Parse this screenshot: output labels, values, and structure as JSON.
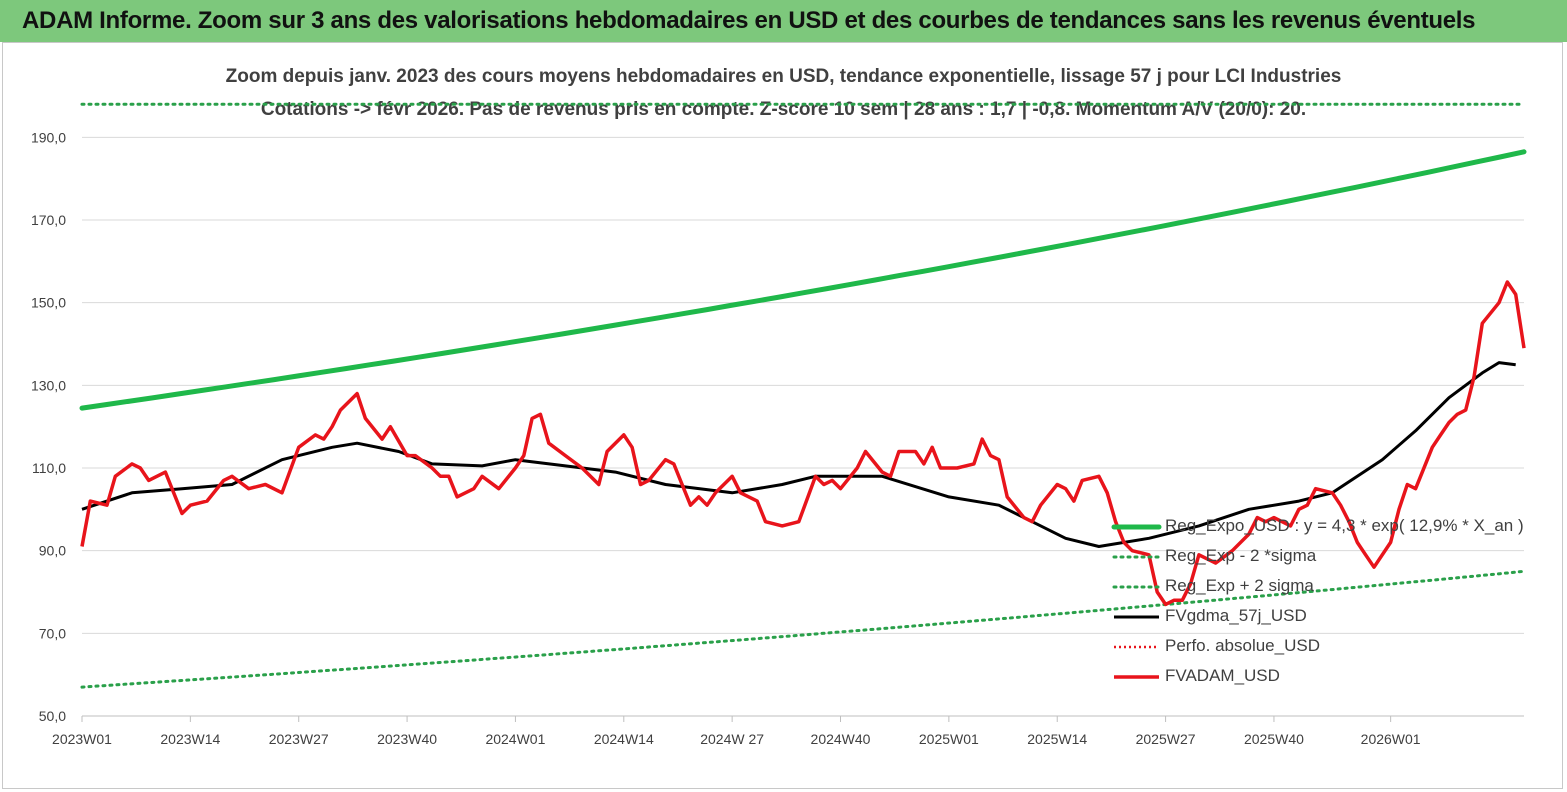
{
  "banner": {
    "title": "ADAM Informe. Zoom sur 3 ans des valorisations hebdomadaires en USD et des courbes de tendances sans les revenus éventuels"
  },
  "colors": {
    "banner_bg": "#7dc87c",
    "trend": "#1fb84a",
    "band": "#2aa04a",
    "smooth": "#000000",
    "price": "#e8141b",
    "perf": "#e8141b"
  },
  "chart_data": {
    "type": "line",
    "title": "",
    "subtitle_lines": [
      "Zoom depuis janv. 2023 des cours moyens hebdomadaires en USD, tendance exponentielle, lissage 57 j pour LCI Industries",
      "Cotations -> févr 2026.  Pas de revenus pris en compte. Z-score 10 sem | 28 ans : 1,7 | -0,8. Momentum A/V (20/0): 20."
    ],
    "ylim": [
      50,
      200
    ],
    "yticks": [
      "50,0",
      "70,0",
      "90,0",
      "110,0",
      "130,0",
      "150,0",
      "170,0",
      "190,0"
    ],
    "ytick_values": [
      50,
      70,
      90,
      110,
      130,
      150,
      170,
      190
    ],
    "x_range": [
      0,
      166
    ],
    "xticks": [
      "2023W01",
      "2023W14",
      "2023W27",
      "2023W40",
      "2024W01",
      "2024W14",
      "2024W 27",
      "2024W40",
      "2025W01",
      "2025W14",
      "2025W27",
      "2025W40",
      "2026W01"
    ],
    "xtick_positions": [
      0,
      13,
      26,
      39,
      52,
      65,
      78,
      91,
      104,
      117,
      130,
      143,
      157
    ],
    "grid": true,
    "legend_position": "bottom-right",
    "series": [
      {
        "name": "Reg_Expo_USD : y = 4,3 * exp( 12,9% *  X_an )",
        "style": "trend",
        "start": 124.5,
        "end": 186.5
      },
      {
        "name": "Reg_Exp - 2 *sigma",
        "style": "band",
        "start": 57,
        "end": 85
      },
      {
        "name": "Reg_Exp + 2 sigma",
        "style": "band",
        "start": 198,
        "end": 198
      },
      {
        "name": "FVgdma_57j_USD",
        "style": "smooth",
        "points": [
          [
            0,
            100
          ],
          [
            6,
            104
          ],
          [
            12,
            105
          ],
          [
            18,
            106
          ],
          [
            24,
            112
          ],
          [
            30,
            115
          ],
          [
            33,
            116
          ],
          [
            38,
            114
          ],
          [
            42,
            111
          ],
          [
            48,
            110.5
          ],
          [
            52,
            112
          ],
          [
            58,
            110.5
          ],
          [
            64,
            109
          ],
          [
            70,
            106
          ],
          [
            78,
            104
          ],
          [
            84,
            106
          ],
          [
            88,
            108
          ],
          [
            96,
            108
          ],
          [
            104,
            103
          ],
          [
            110,
            101
          ],
          [
            114,
            97
          ],
          [
            118,
            93
          ],
          [
            122,
            91
          ],
          [
            128,
            93
          ],
          [
            134,
            96
          ],
          [
            140,
            100
          ],
          [
            146,
            102
          ],
          [
            150,
            104
          ],
          [
            156,
            112
          ],
          [
            160,
            119
          ],
          [
            164,
            127
          ],
          [
            168,
            133
          ],
          [
            170,
            135.5
          ],
          [
            172,
            135
          ]
        ]
      },
      {
        "name": "Perfo. absolue_USD",
        "style": "perf",
        "points": []
      },
      {
        "name": "FVADAM_USD",
        "style": "price",
        "points": [
          [
            0,
            91
          ],
          [
            1,
            102
          ],
          [
            3,
            101
          ],
          [
            4,
            108
          ],
          [
            6,
            111
          ],
          [
            7,
            110
          ],
          [
            8,
            107
          ],
          [
            10,
            109
          ],
          [
            12,
            99
          ],
          [
            13,
            101
          ],
          [
            15,
            102
          ],
          [
            17,
            107
          ],
          [
            18,
            108
          ],
          [
            20,
            105
          ],
          [
            22,
            106
          ],
          [
            24,
            104
          ],
          [
            26,
            115
          ],
          [
            28,
            118
          ],
          [
            29,
            117
          ],
          [
            30,
            120
          ],
          [
            31,
            124
          ],
          [
            33,
            128
          ],
          [
            34,
            122
          ],
          [
            36,
            117
          ],
          [
            37,
            120
          ],
          [
            39,
            113
          ],
          [
            40,
            113
          ],
          [
            42,
            110
          ],
          [
            43,
            108
          ],
          [
            44,
            108
          ],
          [
            45,
            103
          ],
          [
            47,
            105
          ],
          [
            48,
            108
          ],
          [
            50,
            105
          ],
          [
            52,
            110
          ],
          [
            53,
            113
          ],
          [
            54,
            122
          ],
          [
            55,
            123
          ],
          [
            56,
            116
          ],
          [
            58,
            113
          ],
          [
            60,
            110
          ],
          [
            62,
            106
          ],
          [
            63,
            114
          ],
          [
            65,
            118
          ],
          [
            66,
            115
          ],
          [
            67,
            106
          ],
          [
            68,
            107
          ],
          [
            70,
            112
          ],
          [
            71,
            111
          ],
          [
            72,
            106
          ],
          [
            73,
            101
          ],
          [
            74,
            103
          ],
          [
            75,
            101
          ],
          [
            76,
            104
          ],
          [
            78,
            108
          ],
          [
            79,
            104
          ],
          [
            81,
            102
          ],
          [
            82,
            97
          ],
          [
            84,
            96
          ],
          [
            86,
            97
          ],
          [
            88,
            108
          ],
          [
            89,
            106
          ],
          [
            90,
            107
          ],
          [
            91,
            105
          ],
          [
            93,
            110
          ],
          [
            94,
            114
          ],
          [
            96,
            109
          ],
          [
            97,
            108
          ],
          [
            98,
            114
          ],
          [
            100,
            114
          ],
          [
            101,
            111
          ],
          [
            102,
            115
          ],
          [
            103,
            110
          ],
          [
            105,
            110
          ],
          [
            107,
            111
          ],
          [
            108,
            117
          ],
          [
            109,
            113
          ],
          [
            110,
            112
          ],
          [
            111,
            103
          ],
          [
            113,
            98
          ],
          [
            114,
            97
          ],
          [
            115,
            101
          ],
          [
            117,
            106
          ],
          [
            118,
            105
          ],
          [
            119,
            102
          ],
          [
            120,
            107
          ],
          [
            122,
            108
          ],
          [
            123,
            104
          ],
          [
            124,
            97
          ],
          [
            125,
            92
          ],
          [
            126,
            90
          ],
          [
            128,
            89
          ],
          [
            129,
            80
          ],
          [
            130,
            77
          ],
          [
            131,
            78
          ],
          [
            132,
            78
          ],
          [
            133,
            82
          ],
          [
            134,
            89
          ],
          [
            136,
            87
          ],
          [
            138,
            90
          ],
          [
            140,
            94
          ],
          [
            141,
            98
          ],
          [
            142,
            97
          ],
          [
            143,
            98
          ],
          [
            145,
            96
          ],
          [
            146,
            100
          ],
          [
            147,
            101
          ],
          [
            148,
            105
          ],
          [
            150,
            104
          ],
          [
            151,
            101
          ],
          [
            152,
            97
          ],
          [
            153,
            92
          ],
          [
            154,
            89
          ],
          [
            155,
            86
          ],
          [
            157,
            92
          ],
          [
            158,
            100
          ],
          [
            159,
            106
          ],
          [
            160,
            105
          ],
          [
            162,
            115
          ],
          [
            163,
            118
          ],
          [
            164,
            121
          ],
          [
            165,
            123
          ],
          [
            166,
            124
          ],
          [
            167,
            132
          ],
          [
            168,
            145
          ],
          [
            170,
            150
          ],
          [
            171,
            155
          ],
          [
            172,
            152
          ],
          [
            173,
            139
          ]
        ]
      }
    ]
  }
}
